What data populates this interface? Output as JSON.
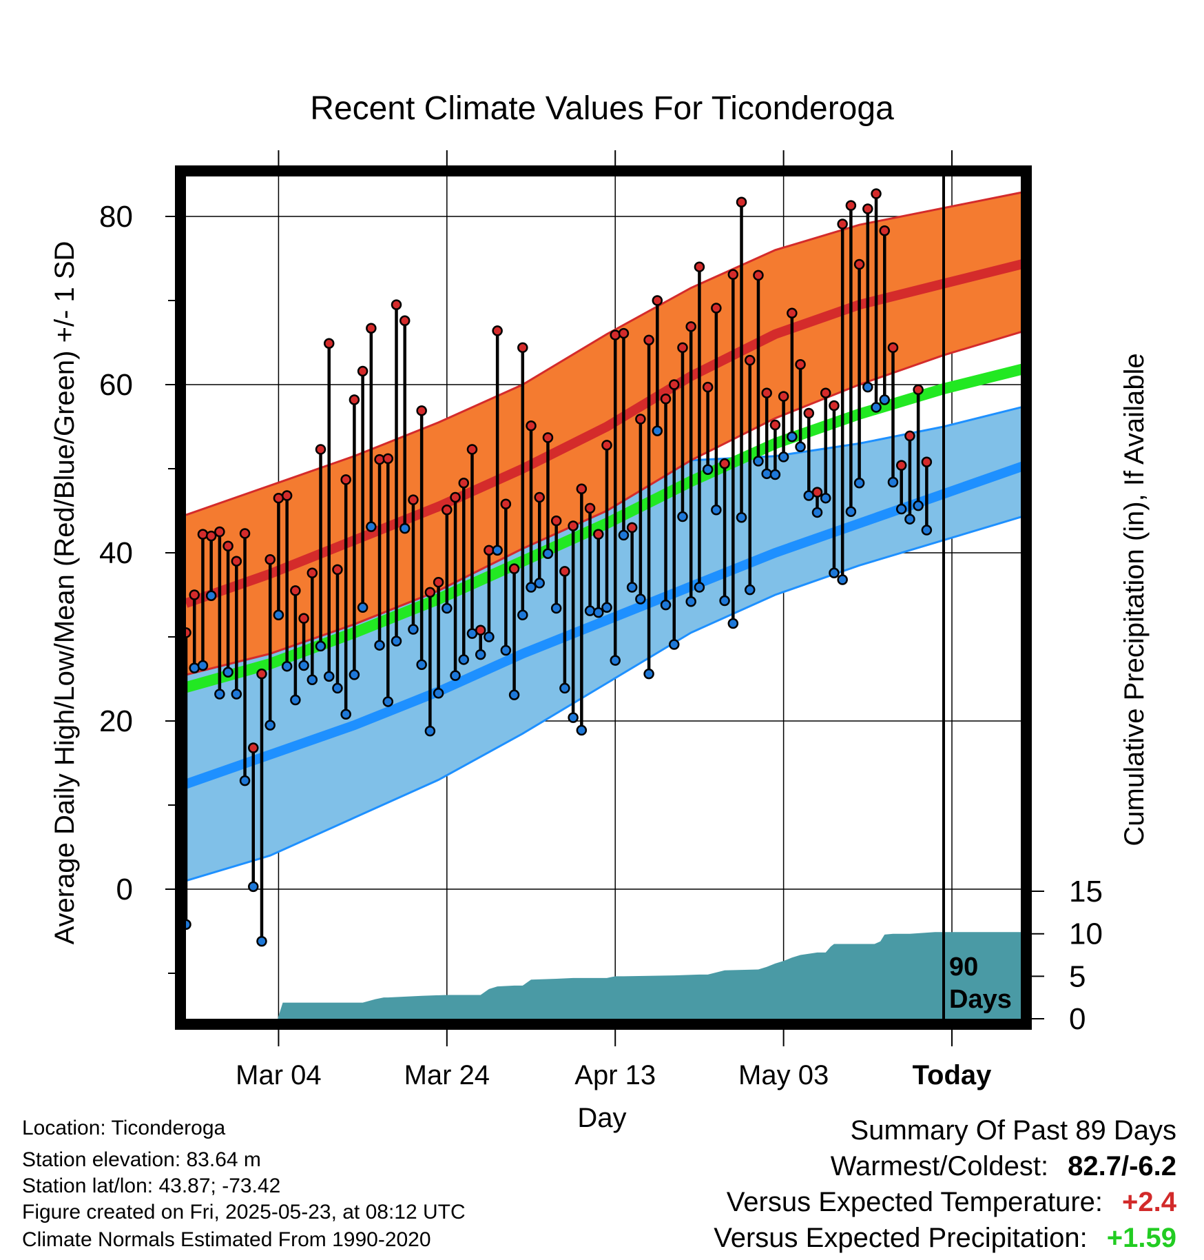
{
  "title": "Recent Climate Values For Ticonderoga",
  "info": {
    "location": "Location: Ticonderoga",
    "elevation": "Station elevation: 83.64 m",
    "latlon": "Station lat/lon: 43.87; -73.42",
    "created": "Figure created on Fri, 2025-05-23, at 08:12 UTC",
    "normals": "Climate Normals Estimated From 1990-2020"
  },
  "summary": {
    "heading": "Summary Of Past 89 Days",
    "warm_cold_label": "Warmest/Coldest:",
    "warm_cold_value": "82.7/-6.2",
    "temp_label": "Versus Expected Temperature:",
    "temp_value": "+2.4",
    "temp_color": "#d22a2a",
    "precip_label": "Versus Expected Precipitation:",
    "precip_value": "+1.59",
    "precip_color": "#22cc22"
  },
  "chart_data": {
    "type": "line",
    "xlabel": "Day",
    "ylabel": "Average Daily High/Low/Mean (Red/Blue/Green) +/- 1 SD",
    "y2label": "Cumulative Precipitation (in), If Available",
    "ylim": [
      -15.5,
      87.5
    ],
    "y2lim": [
      0,
      20
    ],
    "y_ticks": [
      0,
      20,
      40,
      60,
      80
    ],
    "y2_ticks": [
      0,
      5,
      10,
      15
    ],
    "x_ticks": [
      {
        "day": 11,
        "label": "Mar 04"
      },
      {
        "day": 31,
        "label": "Mar 24"
      },
      {
        "day": 51,
        "label": "Apr 13"
      },
      {
        "day": 71,
        "label": "May 03"
      },
      {
        "day": 91,
        "label": "Today"
      }
    ],
    "today_line_label": [
      "90",
      "Days"
    ],
    "grid": true,
    "colors": {
      "high_band": "#f47b30",
      "high_line": "#d42b2b",
      "low_band": "#80c0e8",
      "low_line": "#1e90ff",
      "mean_line": "#22e822",
      "precip": "#4a9aa5",
      "high_point": "#d42b2b",
      "low_point": "#1e78d8"
    },
    "normals": {
      "days": [
        0,
        10,
        20,
        30,
        40,
        50,
        60,
        70,
        80,
        90,
        100
      ],
      "high_mean": [
        34,
        37.5,
        41.5,
        45.5,
        50,
        55,
        61,
        66,
        69.5,
        72,
        74.5
      ],
      "high_upper": [
        44.5,
        48,
        51.5,
        55.5,
        60,
        66,
        71.5,
        76,
        79,
        81,
        83
      ],
      "high_lower": [
        25.5,
        28,
        31.5,
        35.5,
        40.5,
        45,
        51,
        56,
        60,
        63.5,
        66.5
      ],
      "low_mean": [
        12.5,
        16,
        19.5,
        23.5,
        28,
        32,
        36,
        40,
        43.5,
        47,
        50.5
      ],
      "low_upper": [
        25.5,
        28,
        31.5,
        35.5,
        40.5,
        45,
        51,
        51.5,
        53,
        55,
        57.5
      ],
      "low_lower": [
        1,
        4,
        8.5,
        13,
        18.5,
        24.5,
        30.5,
        35,
        38.5,
        41.5,
        44.5
      ],
      "avg_mean": [
        24,
        26.8,
        30.5,
        34.5,
        39,
        43.5,
        48.5,
        53,
        56.5,
        59.5,
        62
      ]
    },
    "highs": [
      30.5,
      35,
      42.2,
      42,
      42.5,
      40.8,
      39,
      42.3,
      16.8,
      25.6,
      39.2,
      46.5,
      46.8,
      35.5,
      32.2,
      37.6,
      52.3,
      64.9,
      38,
      48.7,
      58.2,
      61.6,
      66.7,
      51.1,
      51.2,
      69.5,
      67.6,
      46.3,
      56.9,
      35.3,
      36.5,
      45.1,
      46.6,
      48.3,
      52.3,
      30.8,
      40.3,
      66.4,
      45.8,
      38.1,
      64.4,
      55.1,
      46.6,
      53.7,
      43.8,
      37.8,
      43.2,
      47.6,
      45.3,
      42.2,
      52.8,
      65.9,
      66.1,
      43,
      55.9,
      65.3,
      70,
      58.3,
      60,
      64.4,
      66.9,
      74,
      59.7,
      69.1,
      50.6,
      73.1,
      81.7,
      62.9,
      73,
      59,
      55.2,
      58.6,
      68.5,
      62.4,
      56.6,
      47.2,
      59,
      57.5,
      79.1,
      81.3,
      74.3,
      80.9,
      82.7,
      78.3,
      64.4,
      50.4,
      53.9,
      59.4,
      50.8
    ],
    "lows": [
      -4.2,
      26.3,
      26.6,
      34.9,
      23.2,
      25.8,
      23.2,
      12.9,
      0.3,
      -6.2,
      19.5,
      32.6,
      26.5,
      22.5,
      26.6,
      24.9,
      28.9,
      25.3,
      23.9,
      20.8,
      25.5,
      33.5,
      43.1,
      29,
      22.3,
      29.5,
      42.9,
      30.9,
      26.7,
      18.8,
      23.3,
      33.4,
      25.4,
      27.3,
      30.4,
      27.9,
      30,
      40.3,
      28.4,
      23.1,
      32.6,
      35.9,
      36.4,
      39.9,
      33.4,
      23.9,
      20.4,
      18.9,
      33.1,
      32.9,
      33.5,
      27.2,
      42.1,
      35.9,
      34.5,
      25.6,
      54.5,
      33.8,
      29.1,
      44.3,
      34.2,
      35.9,
      49.9,
      45.1,
      34.3,
      31.6,
      44.2,
      35.6,
      50.9,
      49.4,
      49.3,
      51.4,
      53.8,
      52.6,
      46.8,
      44.8,
      46.5,
      37.6,
      36.8,
      44.9,
      48.3,
      59.7,
      57.3,
      58.2,
      48.4,
      45.2,
      44,
      45.6,
      42.7
    ],
    "precip": {
      "days": [
        0,
        10,
        10.9,
        11.5,
        21,
        22.5,
        23.5,
        24,
        28,
        31,
        35,
        36,
        37,
        39,
        40,
        41,
        44,
        46,
        50,
        51,
        52,
        58,
        61,
        62,
        64,
        68,
        69,
        70,
        71,
        72,
        73,
        75,
        76,
        76.6,
        77,
        81.8,
        82.5,
        83,
        84,
        86,
        89,
        91,
        100
      ],
      "values": [
        0,
        0,
        0,
        1.9,
        1.9,
        2.3,
        2.5,
        2.5,
        2.7,
        2.8,
        2.8,
        3.5,
        3.8,
        3.9,
        3.9,
        4.6,
        4.7,
        4.8,
        4.8,
        5,
        5,
        5.1,
        5.2,
        5.2,
        5.7,
        5.8,
        6.1,
        6.5,
        6.8,
        7.2,
        7.5,
        7.8,
        7.8,
        8.5,
        8.8,
        8.8,
        9.1,
        9.9,
        10,
        10,
        10.2,
        10.2,
        10.2
      ]
    }
  }
}
